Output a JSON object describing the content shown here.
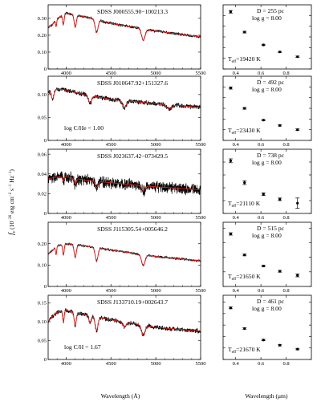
{
  "figure": {
    "xlabel_left": "Wavelength (Å)",
    "xlabel_right": "Wavelength (μm)",
    "ylabel_main": "f",
    "ylabel_sub": "ν",
    "ylabel_unit_a": " (10",
    "ylabel_unit_b": " erg cm",
    "ylabel_unit_c": " s",
    "ylabel_unit_d": " Hz",
    "ylabel_unit_e": ")",
    "ylabel_exp_a": "−26",
    "ylabel_exp_b": "−2",
    "ylabel_exp_c": "−1",
    "ylabel_exp_d": "−1",
    "colors": {
      "observed": "#000000",
      "model": "#e8211d"
    }
  },
  "chart_data": [
    {
      "type": "line",
      "name": "SDSS J000555.90−100213.3",
      "xlim": [
        3800,
        5500
      ],
      "ylim": [
        0,
        0.38
      ],
      "xticks": [
        4000,
        4500,
        5000,
        5500
      ],
      "yticks": [
        0,
        0.1,
        0.2,
        0.3
      ],
      "ytick_labels": [
        "0",
        "0.10",
        "0.20",
        "0.30"
      ],
      "continuum_x": [
        3800,
        3850,
        3900,
        4000,
        4200,
        4500,
        5000,
        5500
      ],
      "continuum_y": [
        0.245,
        0.265,
        0.3,
        0.33,
        0.31,
        0.27,
        0.225,
        0.19
      ],
      "absorption_lines": [
        {
          "center": 4861,
          "depth": 0.28,
          "width": 28
        },
        {
          "center": 4340,
          "depth": 0.26,
          "width": 22
        },
        {
          "center": 4102,
          "depth": 0.22,
          "width": 17
        },
        {
          "center": 3970,
          "depth": 0.18,
          "width": 12
        },
        {
          "center": 3889,
          "depth": 0.14,
          "width": 9
        }
      ],
      "noise": 0.006
    },
    {
      "type": "line",
      "name": "SDSS J010647.92+151327.6",
      "annotation": "log C/He = 1.00",
      "xlim": [
        3800,
        5500
      ],
      "ylim": [
        0,
        0.14
      ],
      "xticks": [
        4000,
        4500,
        5000,
        5500
      ],
      "yticks": [
        0,
        0.05,
        0.1
      ],
      "ytick_labels": [
        "0",
        "0.05",
        "0.10"
      ],
      "continuum_x": [
        3800,
        3850,
        3900,
        4000,
        4200,
        4500,
        5000,
        5500
      ],
      "continuum_y": [
        0.105,
        0.11,
        0.112,
        0.11,
        0.1,
        0.09,
        0.08,
        0.072
      ],
      "absorption_lines": [
        {
          "center": 3850,
          "depth": 0.18,
          "width": 20
        },
        {
          "center": 4267,
          "depth": 0.16,
          "width": 24
        },
        {
          "center": 4650,
          "depth": 0.18,
          "width": 30
        },
        {
          "center": 5150,
          "depth": 0.12,
          "width": 40
        }
      ],
      "noise": 0.004
    },
    {
      "type": "line",
      "name": "SDSS J023637.42−073429.5",
      "xlim": [
        3800,
        5500
      ],
      "ylim": [
        0,
        0.065
      ],
      "xticks": [
        4000,
        4500,
        5000,
        5500
      ],
      "yticks": [
        0,
        0.02,
        0.04,
        0.06
      ],
      "ytick_labels": [
        "0",
        "0.02",
        "0.04",
        "0.06"
      ],
      "continuum_x": [
        3800,
        3900,
        4000,
        4200,
        4500,
        5000,
        5500
      ],
      "continuum_y": [
        0.035,
        0.037,
        0.037,
        0.034,
        0.031,
        0.027,
        0.024
      ],
      "absorption_lines": [
        {
          "center": 4861,
          "depth": 0.18,
          "width": 28
        },
        {
          "center": 4340,
          "depth": 0.2,
          "width": 22
        },
        {
          "center": 4102,
          "depth": 0.16,
          "width": 17
        },
        {
          "center": 3970,
          "depth": 0.12,
          "width": 12
        }
      ],
      "noise": 0.0045
    },
    {
      "type": "line",
      "name": "SDSS J115305.54+005646.2",
      "xlim": [
        3800,
        5500
      ],
      "ylim": [
        0,
        0.3
      ],
      "xticks": [
        4000,
        4500,
        5000,
        5500
      ],
      "yticks": [
        0,
        0.1,
        0.2
      ],
      "ytick_labels": [
        "0",
        "0.10",
        "0.20"
      ],
      "continuum_x": [
        3800,
        3850,
        3900,
        4000,
        4200,
        4500,
        5000,
        5500
      ],
      "continuum_y": [
        0.15,
        0.17,
        0.19,
        0.2,
        0.19,
        0.17,
        0.14,
        0.12
      ],
      "absorption_lines": [
        {
          "center": 4861,
          "depth": 0.34,
          "width": 28
        },
        {
          "center": 4340,
          "depth": 0.34,
          "width": 22
        },
        {
          "center": 4102,
          "depth": 0.3,
          "width": 17
        },
        {
          "center": 3970,
          "depth": 0.25,
          "width": 12
        },
        {
          "center": 3889,
          "depth": 0.2,
          "width": 9
        }
      ],
      "noise": 0.004
    },
    {
      "type": "line",
      "name": "SDSS J133710.19+002643.7",
      "annotation": "log C/H = 1.67",
      "xlim": [
        3800,
        5500
      ],
      "ylim": [
        0,
        0.17
      ],
      "xticks": [
        4000,
        4500,
        5000,
        5500
      ],
      "yticks": [
        0,
        0.05,
        0.1,
        0.15
      ],
      "ytick_labels": [
        "0",
        "0.05",
        "0.10",
        "0.15"
      ],
      "continuum_x": [
        3800,
        3850,
        3900,
        4000,
        4200,
        4500,
        5000,
        5500
      ],
      "continuum_y": [
        0.1,
        0.115,
        0.125,
        0.13,
        0.12,
        0.105,
        0.085,
        0.075
      ],
      "absorption_lines": [
        {
          "center": 4861,
          "depth": 0.3,
          "width": 28
        },
        {
          "center": 4340,
          "depth": 0.32,
          "width": 22
        },
        {
          "center": 4267,
          "depth": 0.16,
          "width": 20
        },
        {
          "center": 4102,
          "depth": 0.28,
          "width": 17
        },
        {
          "center": 3970,
          "depth": 0.22,
          "width": 12
        },
        {
          "center": 4650,
          "depth": 0.12,
          "width": 30
        }
      ],
      "noise": 0.0045
    },
    {
      "type": "scatter",
      "distance_text": "D = 255 pc",
      "logg_text": "log g = 8.00",
      "teff_text": "19420 K",
      "teff_prefix": "T",
      "teff_sub": "eff",
      "teff_eq": "=",
      "xlim": [
        0.3,
        1.0
      ],
      "ylim": [
        0,
        0.6
      ],
      "xticks": [
        0.4,
        0.6,
        0.8
      ],
      "yticks": [
        0,
        0.1,
        0.2,
        0.3,
        0.4,
        0.5
      ],
      "ytick_labels": [
        "",
        "",
        "",
        "",
        "",
        ""
      ],
      "x": [
        0.36,
        0.47,
        0.62,
        0.75,
        0.89
      ],
      "y": [
        0.535,
        0.345,
        0.225,
        0.16,
        0.115
      ],
      "yerr": [
        0.012,
        0.008,
        0.006,
        0.005,
        0.006
      ]
    },
    {
      "type": "scatter",
      "distance_text": "D = 492 pc",
      "logg_text": "log g = 8.00",
      "teff_text": "23430 K",
      "teff_prefix": "T",
      "teff_sub": "eff",
      "teff_eq": "=",
      "xlim": [
        0.3,
        1.0
      ],
      "ylim": [
        0,
        0.3
      ],
      "xticks": [
        0.4,
        0.6,
        0.8
      ],
      "yticks": [
        0,
        0.05,
        0.1,
        0.15,
        0.2,
        0.25
      ],
      "ytick_labels": [
        "",
        "",
        "",
        "",
        "",
        ""
      ],
      "x": [
        0.36,
        0.47,
        0.62,
        0.75,
        0.89
      ],
      "y": [
        0.245,
        0.15,
        0.095,
        0.07,
        0.05
      ],
      "yerr": [
        0.005,
        0.004,
        0.003,
        0.003,
        0.004
      ]
    },
    {
      "type": "scatter",
      "distance_text": "D = 738 pc",
      "logg_text": "log g = 8.00",
      "teff_text": "21110 K",
      "teff_prefix": "T",
      "teff_sub": "eff",
      "teff_eq": "=",
      "xlim": [
        0.3,
        1.0
      ],
      "ylim": [
        0,
        0.1
      ],
      "xticks": [
        0.4,
        0.6,
        0.8
      ],
      "yticks": [
        0,
        0.02,
        0.04,
        0.06,
        0.08
      ],
      "ytick_labels": [
        "",
        "",
        "",
        "",
        ""
      ],
      "x": [
        0.36,
        0.47,
        0.62,
        0.75,
        0.89
      ],
      "y": [
        0.082,
        0.048,
        0.03,
        0.022,
        0.016
      ],
      "yerr": [
        0.003,
        0.003,
        0.002,
        0.002,
        0.008
      ]
    },
    {
      "type": "scatter",
      "distance_text": "D = 515 pc",
      "logg_text": "log g = 8.00",
      "teff_text": "21650 K",
      "teff_prefix": "T",
      "teff_sub": "eff",
      "teff_eq": "=",
      "xlim": [
        0.3,
        1.0
      ],
      "ylim": [
        0,
        0.22
      ],
      "xticks": [
        0.4,
        0.6,
        0.8
      ],
      "yticks": [
        0,
        0.05,
        0.1,
        0.15,
        0.2
      ],
      "ytick_labels": [
        "",
        "",
        "",
        "",
        ""
      ],
      "x": [
        0.36,
        0.47,
        0.62,
        0.75,
        0.89
      ],
      "y": [
        0.18,
        0.108,
        0.07,
        0.052,
        0.038
      ],
      "yerr": [
        0.004,
        0.003,
        0.003,
        0.003,
        0.005
      ]
    },
    {
      "type": "scatter",
      "distance_text": "D = 461 pc",
      "logg_text": "log g = 8.00",
      "teff_text": "21670 K",
      "teff_prefix": "T",
      "teff_sub": "eff",
      "teff_eq": "=",
      "xlim": [
        0.3,
        1.0
      ],
      "ylim": [
        0,
        0.28
      ],
      "xticks": [
        0.4,
        0.6,
        0.8
      ],
      "yticks": [
        0,
        0.05,
        0.1,
        0.15,
        0.2,
        0.25
      ],
      "ytick_labels": [
        "",
        "",
        "",
        "",
        "",
        ""
      ],
      "x": [
        0.36,
        0.47,
        0.62,
        0.75,
        0.89
      ],
      "y": [
        0.225,
        0.135,
        0.085,
        0.062,
        0.045
      ],
      "yerr": [
        0.004,
        0.003,
        0.003,
        0.003,
        0.003
      ]
    }
  ]
}
